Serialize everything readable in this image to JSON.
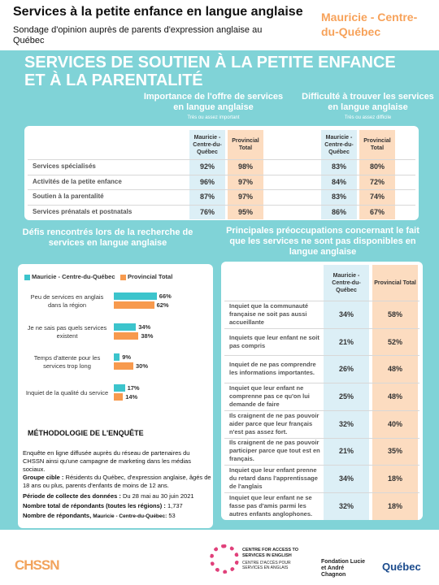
{
  "header": {
    "title": "Services à la petite enfance en langue anglaise",
    "subtitle": "Sondage d'opinion auprès de parents d'expression anglaise au Québec",
    "region": "Mauricie - Centre-du-Québec"
  },
  "section_title": "SERVICES DE SOUTIEN À LA PETITE ENFANCE ET À LA PARENTALITÉ",
  "support_table": {
    "groups": [
      {
        "title": "Importance de l'offre de services en langue anglaise",
        "subtitle": "Très ou assez important"
      },
      {
        "title": "Difficulté à trouver les services en langue anglaise",
        "subtitle": "Très ou assez difficile"
      }
    ],
    "columns": [
      "Mauricie - Centre-du-Québec",
      "Provincial Total"
    ],
    "rows": [
      {
        "label": "Services spécialisés",
        "values": [
          "92%",
          "98%",
          "83%",
          "80%"
        ]
      },
      {
        "label": "Activités de la petite enfance",
        "values": [
          "96%",
          "97%",
          "84%",
          "72%"
        ]
      },
      {
        "label": "Soutien à la parentalité",
        "values": [
          "87%",
          "97%",
          "83%",
          "74%"
        ]
      },
      {
        "label": "Services prénatals et postnatals",
        "values": [
          "76%",
          "95%",
          "86%",
          "67%"
        ]
      }
    ]
  },
  "chart_data": {
    "type": "bar",
    "orientation": "horizontal",
    "title": "Défis rencontrés lors de la recherche de services en langue anglaise",
    "categories": [
      "Peu de services en anglais dans la région",
      "Je ne sais pas quels services existent",
      "Temps d'attente pour les services trop long",
      "Inquiet de la qualité du service"
    ],
    "series": [
      {
        "name": "Mauricie - Centre-du-Québec",
        "color": "#3cc4cc",
        "values": [
          66,
          34,
          9,
          17
        ],
        "value_labels": [
          "66%",
          "34%",
          "9%",
          "17%"
        ]
      },
      {
        "name": "Provincial Total",
        "color": "#f79a4e",
        "values": [
          62,
          38,
          30,
          14
        ],
        "value_labels": [
          "62%",
          "38%",
          "30%",
          "14%"
        ]
      }
    ],
    "legend": "top-left"
  },
  "methodology": {
    "title": "MÉTHODOLOGIE DE L'ENQUÊTE",
    "intro": "Enquête en ligne diffusée auprès du réseau de partenaires du CHSSN ainsi qu'une campagne de marketing dans les médias sociaux.",
    "items": [
      {
        "label": "Groupe cible :",
        "text": "Résidents du Québec, d'expression anglaise, âgés de 18 ans ou plus, parents d'enfants de moins de 12 ans."
      },
      {
        "label": "Période de collecte des données :",
        "text": "Du 28 mai au 30 juin 2021"
      },
      {
        "label": "Nombre total de répondants (toutes les régions) :",
        "text": "1,737"
      },
      {
        "label": "Nombre de répondants,",
        "sublabel": "Mauricie - Centre-du-Québec:",
        "text": "53"
      }
    ]
  },
  "concerns_table": {
    "title": "Principales préoccupations concernant le fait que les services ne sont pas disponibles en langue anglaise",
    "columns": [
      "Mauricie - Centre-du-Québec",
      "Provincial Total"
    ],
    "rows": [
      {
        "label": "Inquiet que la communauté française ne soit pas aussi accueillante",
        "values": [
          "34%",
          "58%"
        ]
      },
      {
        "label": "Inquiets que leur enfant ne soit pas compris",
        "values": [
          "21%",
          "52%"
        ]
      },
      {
        "label": "Inquiet de ne pas comprendre les informations importantes.",
        "values": [
          "26%",
          "48%"
        ]
      },
      {
        "label": "Inquiet que leur enfant ne comprenne pas ce qu'on lui demande de faire",
        "values": [
          "25%",
          "48%"
        ]
      },
      {
        "label": "Ils craignent de ne pas pouvoir aider parce que leur français n'est pas assez fort.",
        "values": [
          "32%",
          "40%"
        ]
      },
      {
        "label": "Ils craignent de ne pas pouvoir participer parce que tout est en français.",
        "values": [
          "21%",
          "35%"
        ]
      },
      {
        "label": "Inquiet que leur enfant prenne du retard dans l'apprentissage de l'anglais",
        "values": [
          "34%",
          "18%"
        ]
      },
      {
        "label": "Inquiet que leur enfant ne se fasse pas d'amis parmi les autres enfants anglophones.",
        "values": [
          "32%",
          "18%"
        ]
      }
    ]
  },
  "footer": {
    "logos": [
      "CHSSN",
      "CENTRE FOR ACCESS TO SERVICES IN ENGLISH",
      "CENTRE D'ACCÈS POUR SERVICES EN ANGLAIS",
      "Fondation Lucie et André Chagnon",
      "Québec"
    ]
  }
}
